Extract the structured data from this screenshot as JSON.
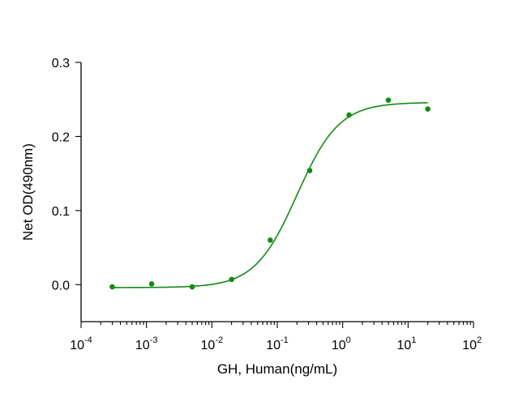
{
  "chart_data": {
    "type": "scatter",
    "title": "",
    "xlabel": "GH, Human(ng/mL)",
    "ylabel": "Net OD(490nm)",
    "x_scale": "log",
    "xlim": [
      0.0001,
      100
    ],
    "ylim": [
      -0.05,
      0.3
    ],
    "grid": false,
    "legend": "none",
    "x_ticks": [
      {
        "value": 0.0001,
        "base": "10",
        "exp": "-4"
      },
      {
        "value": 0.001,
        "base": "10",
        "exp": "-3"
      },
      {
        "value": 0.01,
        "base": "10",
        "exp": "-2"
      },
      {
        "value": 0.1,
        "base": "10",
        "exp": "-1"
      },
      {
        "value": 1,
        "base": "10",
        "exp": "0"
      },
      {
        "value": 10,
        "base": "10",
        "exp": "1"
      },
      {
        "value": 100,
        "base": "10",
        "exp": "2"
      }
    ],
    "y_ticks": [
      {
        "value": 0.0,
        "label": "0.0"
      },
      {
        "value": 0.1,
        "label": "0.1"
      },
      {
        "value": 0.2,
        "label": "0.2"
      },
      {
        "value": 0.3,
        "label": "0.3"
      }
    ],
    "series": [
      {
        "color": "#138a13",
        "points": [
          {
            "x": 0.0003,
            "y": -0.003
          },
          {
            "x": 0.0012,
            "y": 0.001
          },
          {
            "x": 0.005,
            "y": -0.003
          },
          {
            "x": 0.02,
            "y": 0.007
          },
          {
            "x": 0.078,
            "y": 0.06
          },
          {
            "x": 0.313,
            "y": 0.154
          },
          {
            "x": 1.25,
            "y": 0.229
          },
          {
            "x": 5,
            "y": 0.249
          },
          {
            "x": 20,
            "y": 0.237
          }
        ],
        "fit": {
          "model": "4PL",
          "bottom": -0.004,
          "top": 0.246,
          "ec50": 0.2,
          "hill": 1.35
        }
      }
    ]
  }
}
